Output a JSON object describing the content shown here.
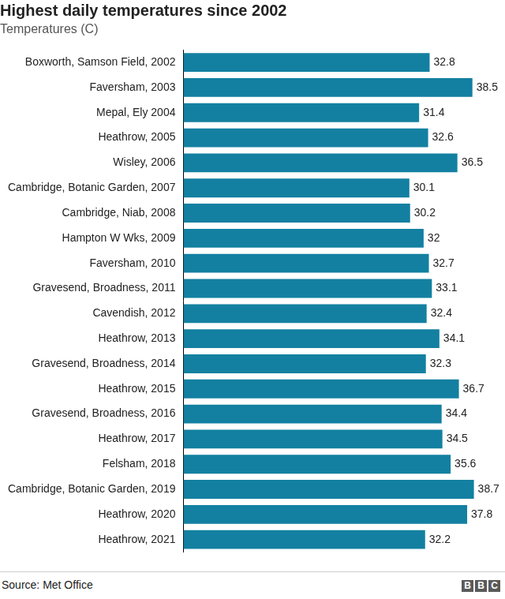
{
  "chart_data": {
    "type": "bar",
    "orientation": "horizontal",
    "title": "Highest daily temperatures since 2002",
    "subtitle": "Temperatures (C)",
    "categories": [
      "Boxworth, Samson Field, 2002",
      "Faversham, 2003",
      "Mepal, Ely 2004",
      "Heathrow, 2005",
      "Wisley, 2006",
      "Cambridge, Botanic Garden, 2007",
      "Cambridge, Niab, 2008",
      "Hampton W Wks, 2009",
      "Faversham, 2010",
      "Gravesend, Broadness, 2011",
      "Cavendish, 2012",
      "Heathrow, 2013",
      "Gravesend, Broadness, 2014",
      "Heathrow, 2015",
      "Gravesend, Broadness, 2016",
      "Heathrow, 2017",
      "Felsham, 2018",
      "Cambridge, Botanic Garden, 2019",
      "Heathrow, 2020",
      "Heathrow, 2021"
    ],
    "values": [
      32.8,
      38.5,
      31.4,
      32.6,
      36.5,
      30.1,
      30.2,
      32,
      32.7,
      33.1,
      32.4,
      34.1,
      32.3,
      36.7,
      34.4,
      34.5,
      35.6,
      38.7,
      37.8,
      32.2
    ],
    "color": "#1380a1",
    "xlim": [
      0,
      42
    ],
    "grid": false,
    "data_labels": true,
    "tick_labels": "y",
    "source": "Source: Met Office",
    "logo": "BBC"
  }
}
